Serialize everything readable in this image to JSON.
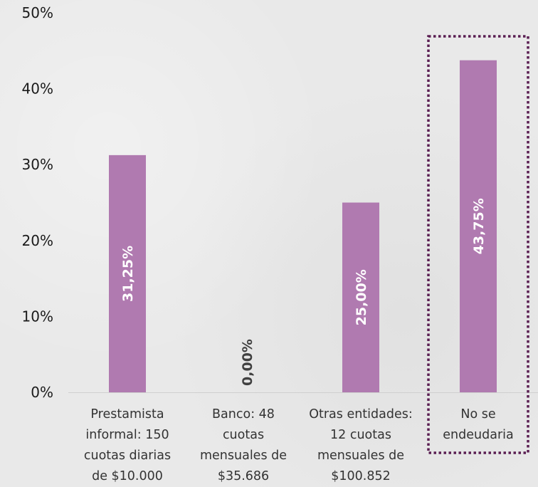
{
  "chart_data": {
    "type": "bar",
    "categories": [
      "Prestamista informal: 150 cuotas diarias de $10.000",
      "Banco: 48 cuotas mensuales de $35.686",
      "Otras entidades: 12 cuotas mensuales de $100.852",
      "No se endeudaria"
    ],
    "category_lines": [
      [
        "Prestamista",
        "informal: 150",
        "cuotas diarias",
        "de $10.000"
      ],
      [
        "Banco: 48",
        "cuotas",
        "mensuales de",
        "$35.686"
      ],
      [
        "Otras entidades:",
        "12 cuotas",
        "mensuales de",
        "$100.852"
      ],
      [
        "No se",
        "endeudaria"
      ]
    ],
    "values": [
      31.25,
      0.0,
      25.0,
      43.75
    ],
    "data_labels": [
      "31,25%",
      "0,00%",
      "25,00%",
      "43,75%"
    ],
    "yticks": [
      "0%",
      "10%",
      "20%",
      "30%",
      "40%",
      "50%"
    ],
    "ylim": [
      0,
      50
    ],
    "highlight_index": 3,
    "grid": false,
    "legend": "none",
    "title": "",
    "xlabel": "",
    "ylabel": ""
  },
  "colors": {
    "bar": "#b07ab0",
    "highlight_border": "#5a1e52",
    "label_on_bar": "#ffffff",
    "label_zero": "#404040",
    "axis": "#cfcfcf"
  }
}
